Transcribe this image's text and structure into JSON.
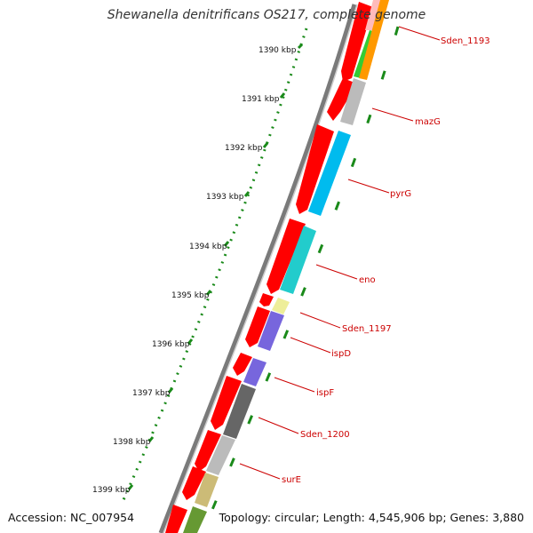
{
  "title": "Shewanella denitrificans OS217, complete genome",
  "accession": "Accession: NC_007954",
  "topology": "Topology: circular; Length: 4,545,906 bp; Genes: 3,880",
  "ticks": [
    "1390 kbp",
    "1391 kbp",
    "1392 kbp",
    "1393 kbp",
    "1394 kbp",
    "1395 kbp",
    "1396 kbp",
    "1397 kbp",
    "1398 kbp",
    "1399 kbp"
  ],
  "gene_labels": [
    "Sden_1193",
    "mazG",
    "pyrG",
    "eno",
    "Sden_1197",
    "ispD",
    "ispF",
    "Sden_1200",
    "surE"
  ],
  "colors": {
    "cds": "#ff0000",
    "backbone": "#7a7a7a",
    "ruler": "#1a8a1a",
    "label": "#cc0000",
    "green": "#33cc33",
    "orange": "#ff9900",
    "pink": "#ffbbbb",
    "light_gray": "#bbbbbb",
    "sky_blue": "#00bbee",
    "teal": "#22cccc",
    "pale_yellow": "#eeee99",
    "slate_purple": "#7766dd",
    "dark_gray": "#666666",
    "khaki": "#ccbb77",
    "olive": "#669933"
  }
}
